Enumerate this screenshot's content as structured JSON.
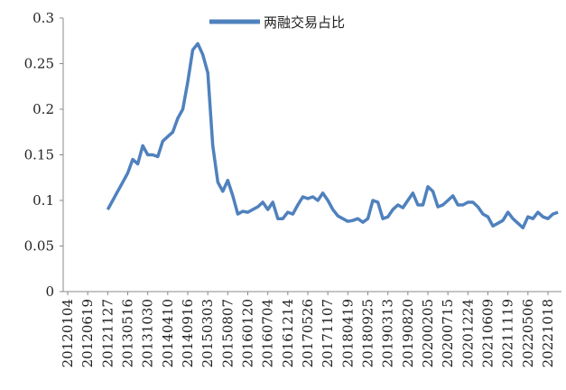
{
  "chart_data": {
    "type": "line",
    "categories": [
      "20120104",
      null,
      null,
      null,
      "20120619",
      null,
      null,
      null,
      "20121127",
      null,
      null,
      null,
      "20130516",
      null,
      null,
      null,
      "20131030",
      null,
      null,
      null,
      "20140410",
      null,
      null,
      null,
      "20140916",
      null,
      null,
      null,
      "20150303",
      null,
      null,
      null,
      "20150807",
      null,
      null,
      null,
      "20160120",
      null,
      null,
      null,
      "20160704",
      null,
      null,
      null,
      "20161214",
      null,
      null,
      null,
      "20170526",
      null,
      null,
      null,
      "20171107",
      null,
      null,
      null,
      "20180419",
      null,
      null,
      null,
      "20180925",
      null,
      null,
      null,
      "20190313",
      null,
      null,
      null,
      "20190820",
      null,
      null,
      null,
      "20200205",
      null,
      null,
      null,
      "20200715",
      null,
      null,
      null,
      "20201224",
      null,
      null,
      null,
      "20210609",
      null,
      null,
      null,
      "20211119",
      null,
      null,
      null,
      "20220506",
      null,
      null,
      null,
      "20221018",
      null,
      null
    ],
    "series": [
      {
        "name": "两融交易占比",
        "color": "#4f81bd",
        "values": [
          null,
          null,
          null,
          null,
          null,
          null,
          null,
          null,
          0.09,
          0.1,
          0.11,
          0.12,
          0.13,
          0.145,
          0.14,
          0.16,
          0.15,
          0.15,
          0.148,
          0.165,
          0.17,
          0.175,
          0.19,
          0.2,
          0.23,
          0.265,
          0.272,
          0.26,
          0.24,
          0.16,
          0.12,
          0.11,
          0.122,
          0.105,
          0.085,
          0.088,
          0.087,
          0.09,
          0.093,
          0.098,
          0.09,
          0.098,
          0.08,
          0.08,
          0.087,
          0.085,
          0.095,
          0.104,
          0.102,
          0.104,
          0.1,
          0.108,
          0.1,
          0.09,
          0.083,
          0.08,
          0.077,
          0.078,
          0.08,
          0.076,
          0.08,
          0.1,
          0.098,
          0.08,
          0.082,
          0.09,
          0.095,
          0.092,
          0.1,
          0.108,
          0.095,
          0.095,
          0.115,
          0.11,
          0.093,
          0.095,
          0.1,
          0.105,
          0.095,
          0.095,
          0.098,
          0.098,
          0.093,
          0.085,
          0.082,
          0.072,
          0.075,
          0.078,
          0.087,
          0.08,
          0.075,
          0.07,
          0.082,
          0.08,
          0.087,
          0.082,
          0.08,
          0.085,
          0.087
        ]
      }
    ],
    "ylim": [
      0,
      0.3
    ],
    "yticks": [
      0,
      0.05,
      0.1,
      0.15,
      0.2,
      0.25,
      0.3
    ],
    "legend": "top"
  }
}
